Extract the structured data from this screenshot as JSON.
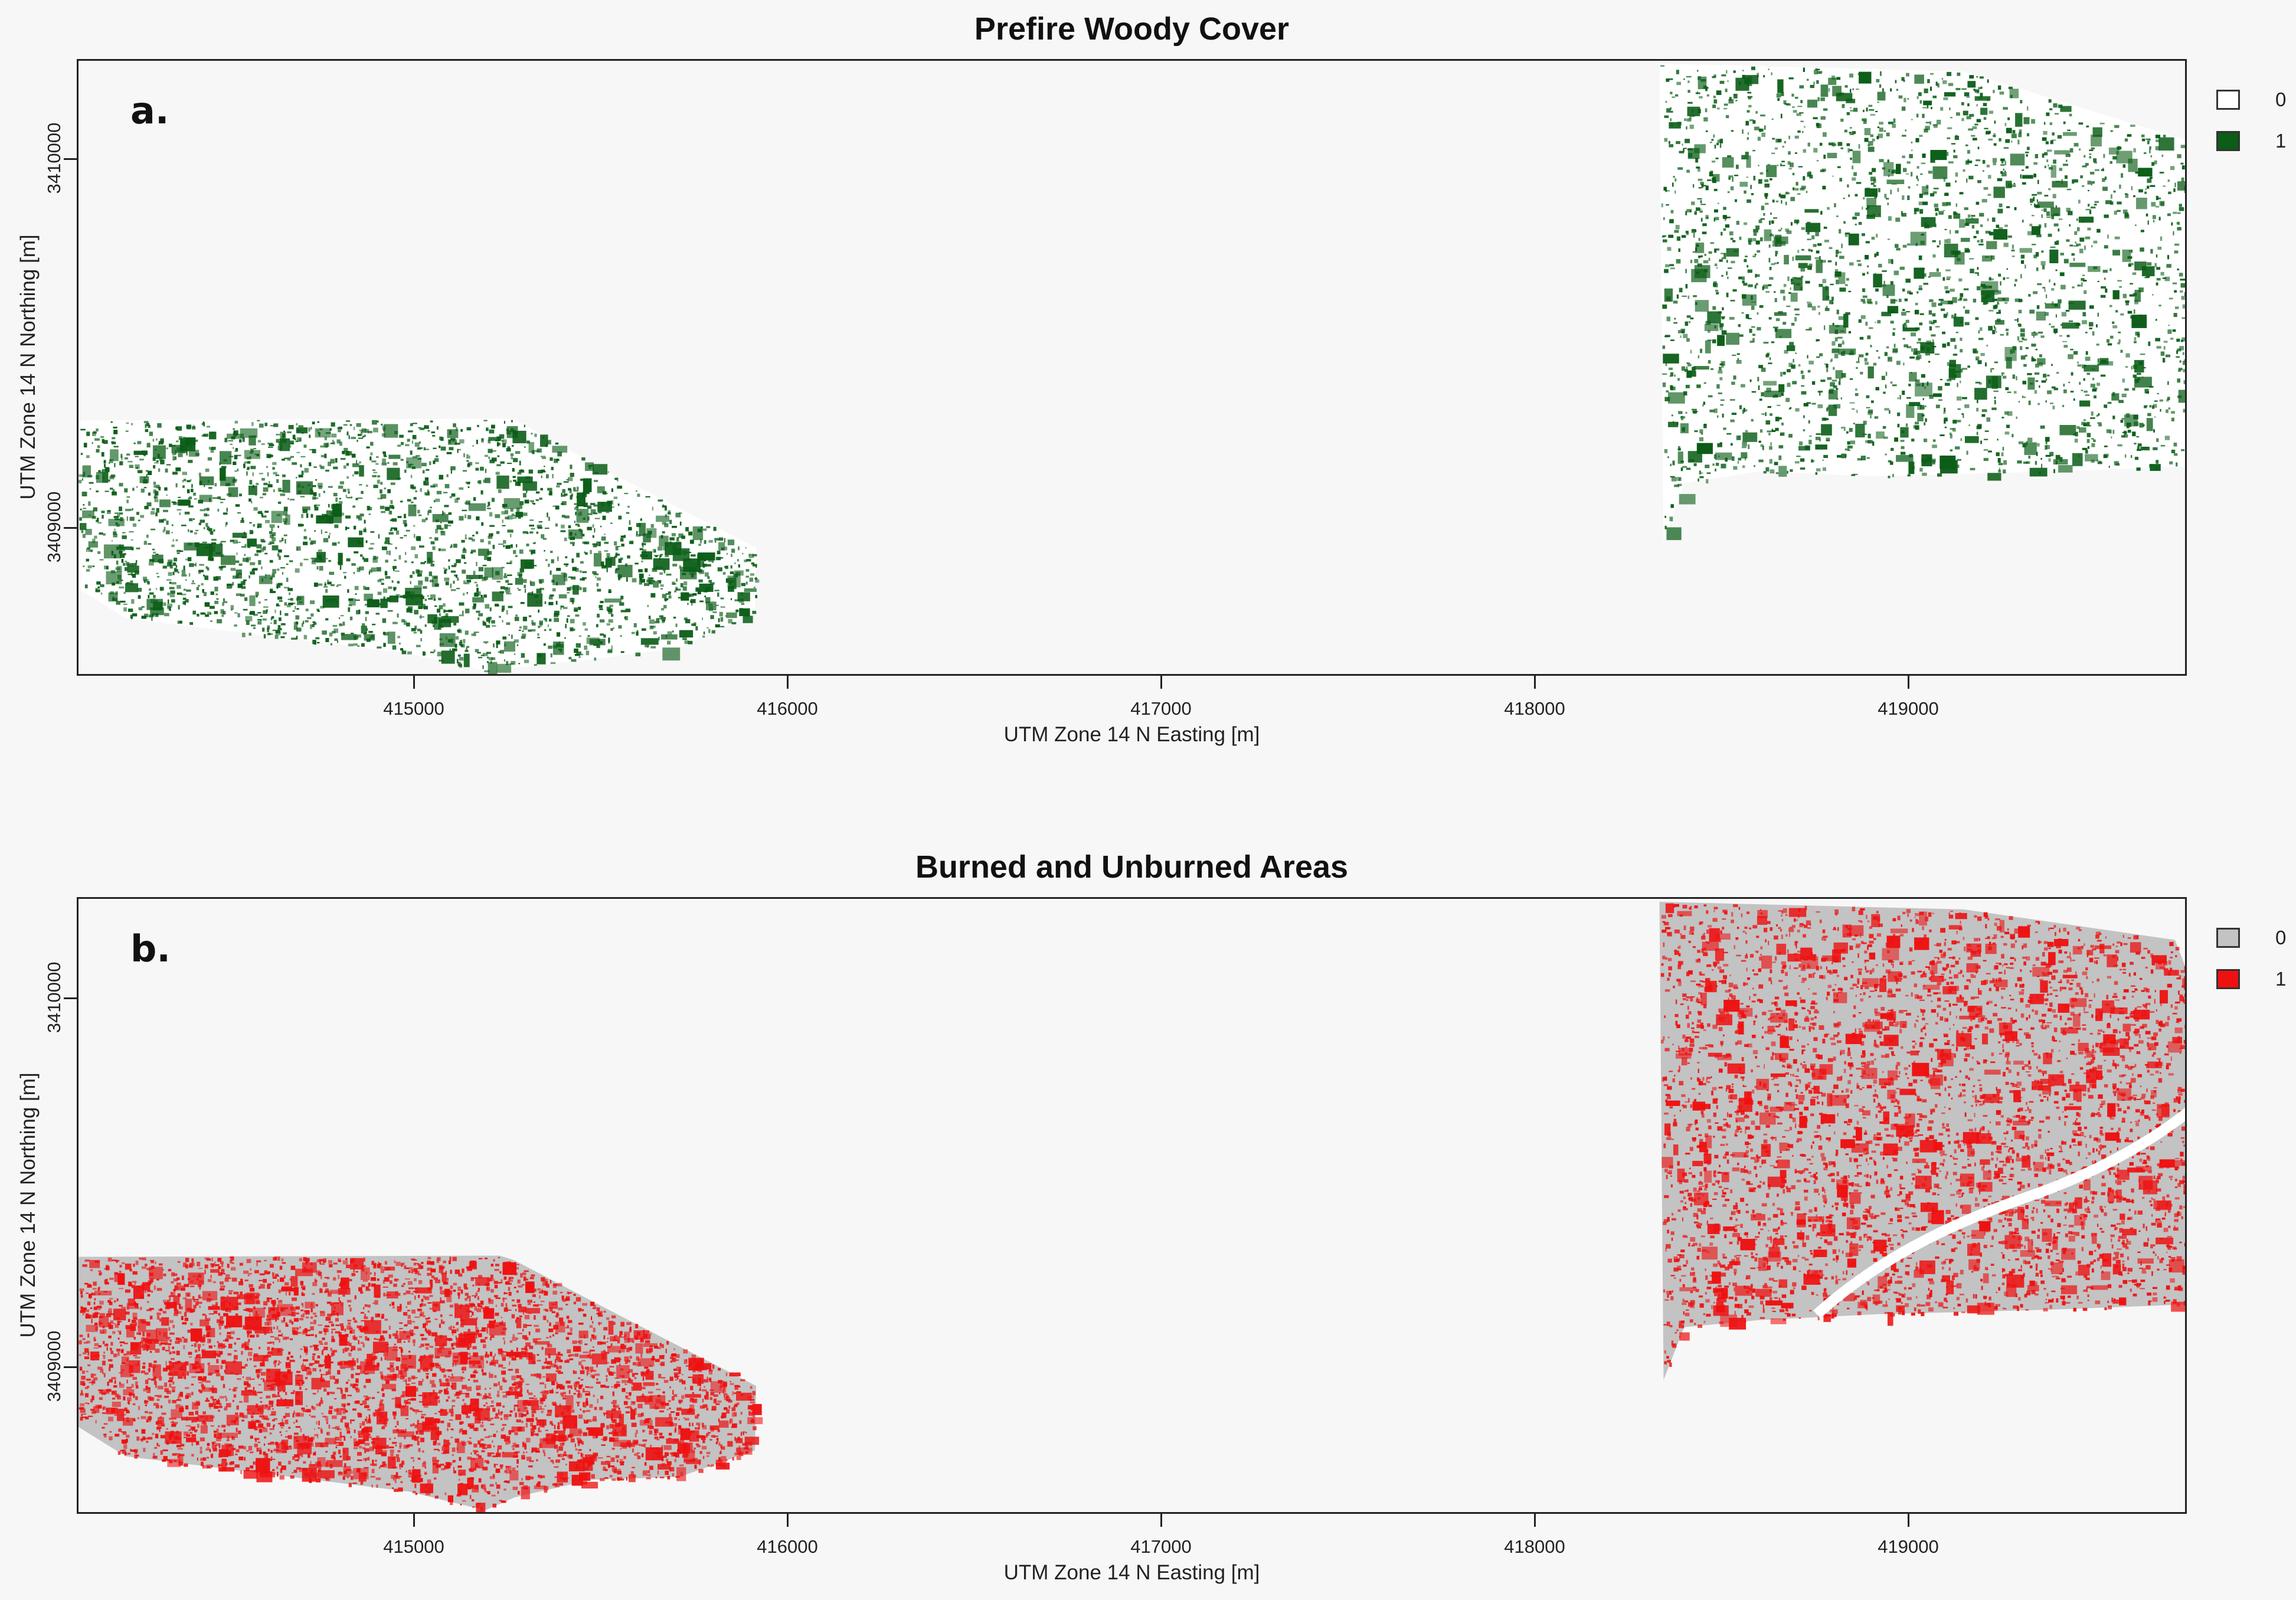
{
  "panels": [
    {
      "id": "a",
      "title": "Prefire Woody Cover",
      "label": "a.",
      "xlabel": "UTM Zone 14 N Easting [m]",
      "ylabel": "UTM Zone 14 N Northing [m]",
      "xticks": [
        "415000",
        "416000",
        "417000",
        "418000",
        "419000"
      ],
      "yticks": [
        "3410000",
        "3409000"
      ],
      "legend": [
        {
          "value": "0",
          "color": "#ffffff"
        },
        {
          "value": "1",
          "color": "#0b5d17"
        }
      ],
      "map": {
        "background_color": "#ffffff",
        "feature_color": "#0b5d17"
      }
    },
    {
      "id": "b",
      "title": "Burned and Unburned Areas",
      "label": "b.",
      "xlabel": "UTM Zone 14 N Easting [m]",
      "ylabel": "UTM Zone 14 N Northing [m]",
      "xticks": [
        "415000",
        "416000",
        "417000",
        "418000",
        "419000"
      ],
      "yticks": [
        "3410000",
        "3409000"
      ],
      "legend": [
        {
          "value": "0",
          "color": "#c3c3c3"
        },
        {
          "value": "1",
          "color": "#ee1111"
        }
      ],
      "map": {
        "background_color": "#c3c3c3",
        "feature_color": "#ee1111"
      }
    }
  ]
}
